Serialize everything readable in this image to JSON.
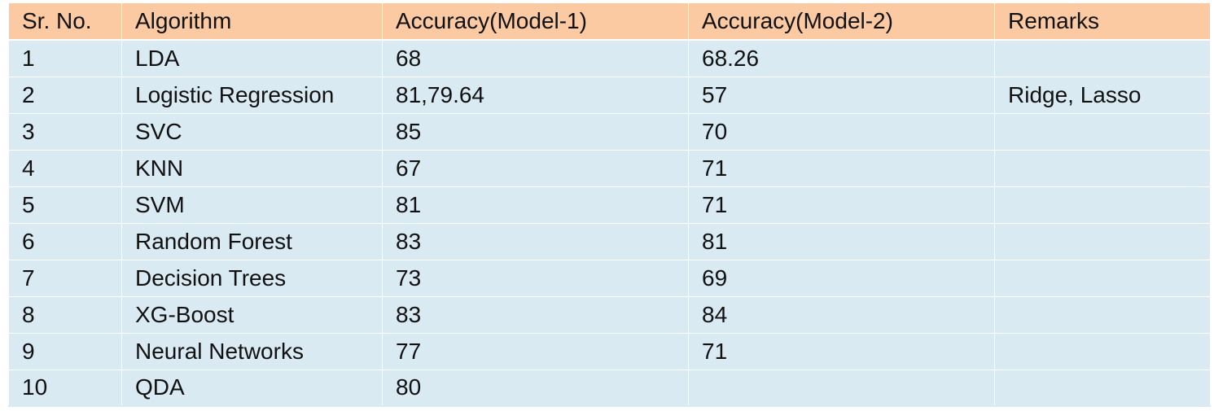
{
  "table": {
    "headers": [
      "Sr. No.",
      "Algorithm",
      "Accuracy(Model-1)",
      "Accuracy(Model-2)",
      "Remarks"
    ],
    "rows": [
      [
        "1",
        "LDA",
        "68",
        "68.26",
        ""
      ],
      [
        "2",
        "Logistic Regression",
        "81,79.64",
        "57",
        "Ridge, Lasso"
      ],
      [
        "3",
        "SVC",
        "85",
        "70",
        ""
      ],
      [
        "4",
        "KNN",
        "67",
        "71",
        ""
      ],
      [
        "5",
        "SVM",
        "81",
        "71",
        ""
      ],
      [
        "6",
        "Random Forest",
        "83",
        "81",
        ""
      ],
      [
        "7",
        "Decision Trees",
        "73",
        "69",
        ""
      ],
      [
        "8",
        "XG-Boost",
        "83",
        "84",
        ""
      ],
      [
        "9",
        "Neural Networks",
        "77",
        "71",
        ""
      ],
      [
        "10",
        "QDA",
        "80",
        "",
        ""
      ]
    ]
  },
  "colors": {
    "header_background": "#fbcaa3",
    "body_background": "#d9eaf2"
  }
}
